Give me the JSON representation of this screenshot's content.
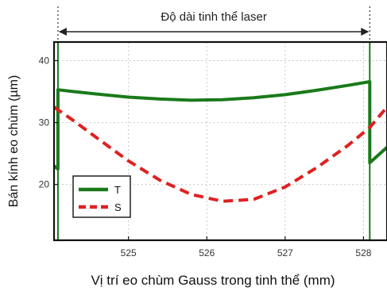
{
  "chart_data": {
    "type": "line",
    "title": "",
    "xlabel": "Vị trí eo chùm Gauss trong tinh thể (mm)",
    "ylabel": "Bán kính eo chùm (µm)",
    "xlim": [
      524.05,
      528.3
    ],
    "ylim": [
      11,
      43
    ],
    "xticks": [
      525,
      526,
      527,
      528
    ],
    "yticks": [
      20,
      30,
      40
    ],
    "grid": true,
    "legend_position": "bottom-left",
    "annotation": {
      "text": "Độ dài tinh thể laser",
      "x_start": 524.1,
      "x_end": 528.08
    },
    "crystal_boundaries": [
      524.1,
      528.08
    ],
    "series": [
      {
        "name": "T",
        "color": "#1a7a1a",
        "style": "solid",
        "x": [
          524.05,
          524.1,
          524.1,
          524.3,
          524.6,
          525.0,
          525.4,
          525.8,
          526.2,
          526.6,
          527.0,
          527.4,
          527.8,
          528.08,
          528.08,
          528.3
        ],
        "y": [
          23.0,
          22.5,
          35.3,
          35.0,
          34.6,
          34.1,
          33.8,
          33.6,
          33.7,
          34.0,
          34.5,
          35.2,
          36.0,
          36.6,
          23.5,
          26.0
        ]
      },
      {
        "name": "S",
        "color": "#e02020",
        "style": "dashed",
        "x": [
          524.05,
          524.3,
          524.6,
          525.0,
          525.4,
          525.8,
          526.2,
          526.6,
          527.0,
          527.4,
          527.8,
          528.08,
          528.3
        ],
        "y": [
          32.5,
          30.3,
          27.5,
          23.8,
          20.7,
          18.4,
          17.3,
          17.6,
          19.6,
          22.7,
          26.3,
          29.2,
          32.5
        ]
      }
    ]
  }
}
